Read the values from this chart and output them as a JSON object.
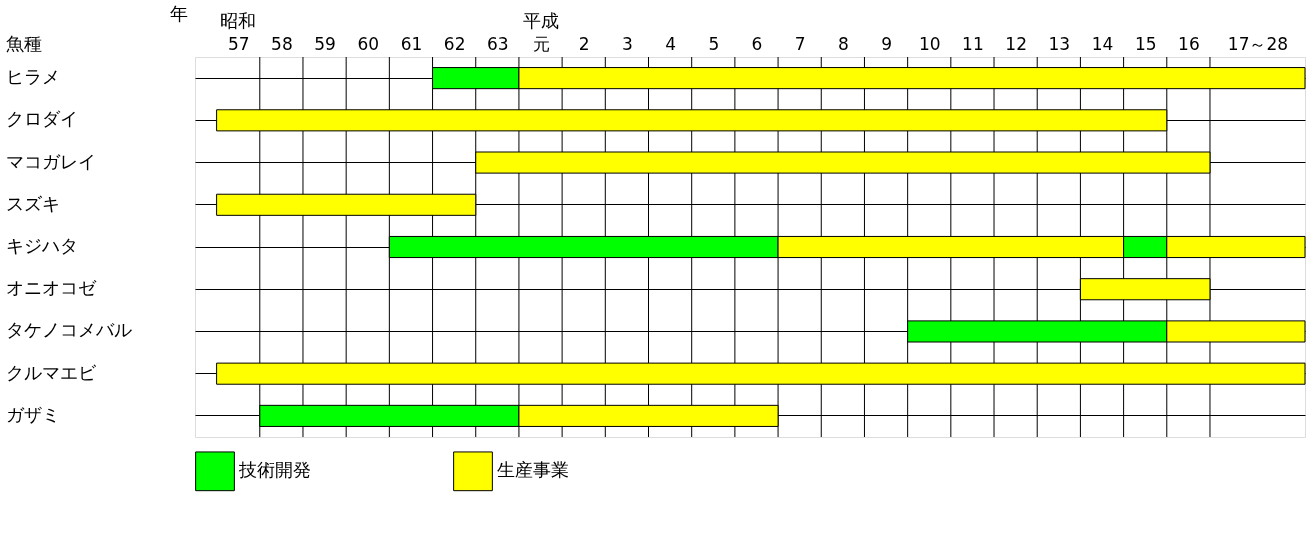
{
  "chart_data": {
    "type": "bar",
    "orientation": "horizontal",
    "xlabel": "年",
    "ylabel": "魚種",
    "categories": [
      "ヒラメ",
      "クロダイ",
      "マコガレイ",
      "スズキ",
      "キジハタ",
      "オニオコゼ",
      "タケノコメバル",
      "クルマエビ",
      "ガザミ"
    ],
    "series": [
      {
        "name": "技術開発",
        "color": "#00ff00",
        "base": [
          -1.5,
          null,
          null,
          null,
          -2.5,
          null,
          9.5,
          null,
          -5.5
        ],
        "values": [
          2,
          null,
          null,
          null,
          9,
          null,
          6,
          null,
          6
        ]
      },
      {
        "name": "生産事業",
        "color": "#ffff00",
        "base": [
          0.5,
          -6.5,
          -0.5,
          -6.5,
          6.5,
          13.5,
          15.5,
          -6.5,
          0.5
        ],
        "values": [
          18.2,
          22,
          17,
          6,
          8,
          3,
          3.2,
          25.2,
          6
        ]
      },
      {
        "color": "#00ff00",
        "base": [
          null,
          null,
          null,
          null,
          14.5,
          null,
          null,
          null,
          null
        ],
        "values": [
          null,
          null,
          null,
          null,
          1,
          null,
          null,
          null,
          null
        ]
      },
      {
        "color": "#ffff00",
        "base": [
          null,
          null,
          null,
          null,
          15.5,
          null,
          null,
          null,
          null
        ],
        "values": [
          null,
          null,
          null,
          null,
          3.2,
          null,
          null,
          null,
          null
        ]
      }
    ],
    "xlim": [
      -7,
      18.7
    ],
    "xticks": [
      {
        "value": -5.5,
        "label": null
      },
      {
        "value": -4.5,
        "label": null
      },
      {
        "value": -3.5,
        "label": null
      },
      {
        "value": -2.5,
        "label": null
      },
      {
        "value": -1.5,
        "label": null
      },
      {
        "value": -0.5,
        "label": null
      },
      {
        "value": 0.5,
        "label": null
      },
      {
        "value": 1,
        "label": "元"
      },
      {
        "value": 1.5,
        "label": null
      },
      2,
      {
        "value": 2.5,
        "label": null
      },
      3,
      {
        "value": 3.5,
        "label": null
      },
      4,
      {
        "value": 4.5,
        "label": null
      },
      5,
      {
        "value": 5.5,
        "label": null
      },
      6,
      {
        "value": 6.5,
        "label": null
      },
      7,
      {
        "value": 7.5,
        "label": null
      },
      8,
      {
        "value": 8.5,
        "label": null
      },
      9,
      {
        "value": 9.5,
        "label": null
      },
      10,
      {
        "value": 10.5,
        "label": null
      },
      11,
      {
        "value": 11.5,
        "label": null
      },
      12,
      {
        "value": 12.5,
        "label": null
      },
      13,
      {
        "value": 13.5,
        "label": null
      },
      14,
      {
        "value": 14.5,
        "label": null
      },
      15,
      {
        "value": 15.5,
        "label": null
      },
      16,
      {
        "value": 16.5,
        "label": null
      },
      {
        "value": 17.6,
        "label": "17～28"
      }
    ],
    "x2lim": [
      56,
      81.7
    ],
    "x2ticks": [
      57,
      58,
      59,
      60,
      61,
      62,
      63
    ],
    "annotations": [
      "昭和",
      "平成"
    ],
    "grid": true,
    "legend": "bottom"
  }
}
